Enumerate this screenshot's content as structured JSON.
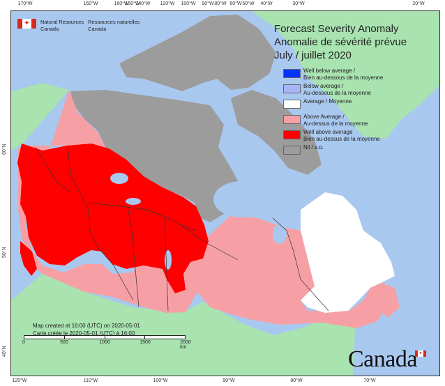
{
  "map": {
    "title_en": "Forecast Severity Anomaly",
    "title_fr": "Anomalie de sévérité prévue",
    "period": "July / juillet 2020",
    "colors": {
      "water": "#a9c8ef",
      "foreign_land": "#a8e3b0",
      "nil": "#9c9c9c",
      "well_below": "#0033ff",
      "below": "#a9b4f7",
      "average": "#ffffff",
      "above": "#f6a0a6",
      "well_above": "#ff0000"
    },
    "legend": [
      {
        "label": "Well below average / Bien au-dessous de la moyenne",
        "line1": "Well below average /",
        "line2": "Bien au-dessous de la moyenne",
        "color": "#0033ff"
      },
      {
        "label": "Below average / Au-dessous de la moyenne",
        "line1": "Below average /",
        "line2": "Au-dessous de la moyenne",
        "color": "#a9b4f7"
      },
      {
        "label": "Average / Moyenne",
        "line1": "Average / Moyenne",
        "line2": "",
        "color": "#ffffff"
      },
      {
        "label": "Above Average / Au-dessus de la moyenne",
        "line1": "Above Average /",
        "line2": "Au-dessus de la moyenne",
        "color": "#f6a0a6"
      },
      {
        "label": "Well above average Bien au-dessus de la moyenne",
        "line1": "Well above average",
        "line2": "Bien au-dessus de la moyenne",
        "color": "#ff0000"
      },
      {
        "label": "Nil / s.o.",
        "line1": "Nil / s.o.",
        "line2": "",
        "color": "#9c9c9c"
      }
    ],
    "department": {
      "en_line1": "Natural Resources",
      "en_line2": "Canada",
      "fr_line1": "Ressources naturelles",
      "fr_line2": "Canada"
    },
    "credit_en": "Map created at 16:00 (UTC) on 2020-05-01",
    "credit_fr": "Carte créée le 2020-05-01 (UTC) à 16:00",
    "scale": {
      "labels": [
        "0",
        "500",
        "1000",
        "1500",
        "2000 km"
      ]
    },
    "wordmark": "Canada",
    "graticule": {
      "top": [
        "170°W",
        "160°W",
        "160°W",
        "150°W",
        "140°W",
        "120°W",
        "100°W",
        "90°W",
        "80°W",
        "60°W",
        "50°W",
        "40°W",
        "30°W",
        "20°W"
      ],
      "bottom": [
        "120°W",
        "110°W",
        "100°W",
        "90°W",
        "80°W",
        "70°W"
      ],
      "left": [
        "60°N",
        "50°N",
        "40°N"
      ],
      "right": [
        "80°N",
        "70°N",
        "60°N",
        "50°N",
        "40°N"
      ]
    }
  }
}
